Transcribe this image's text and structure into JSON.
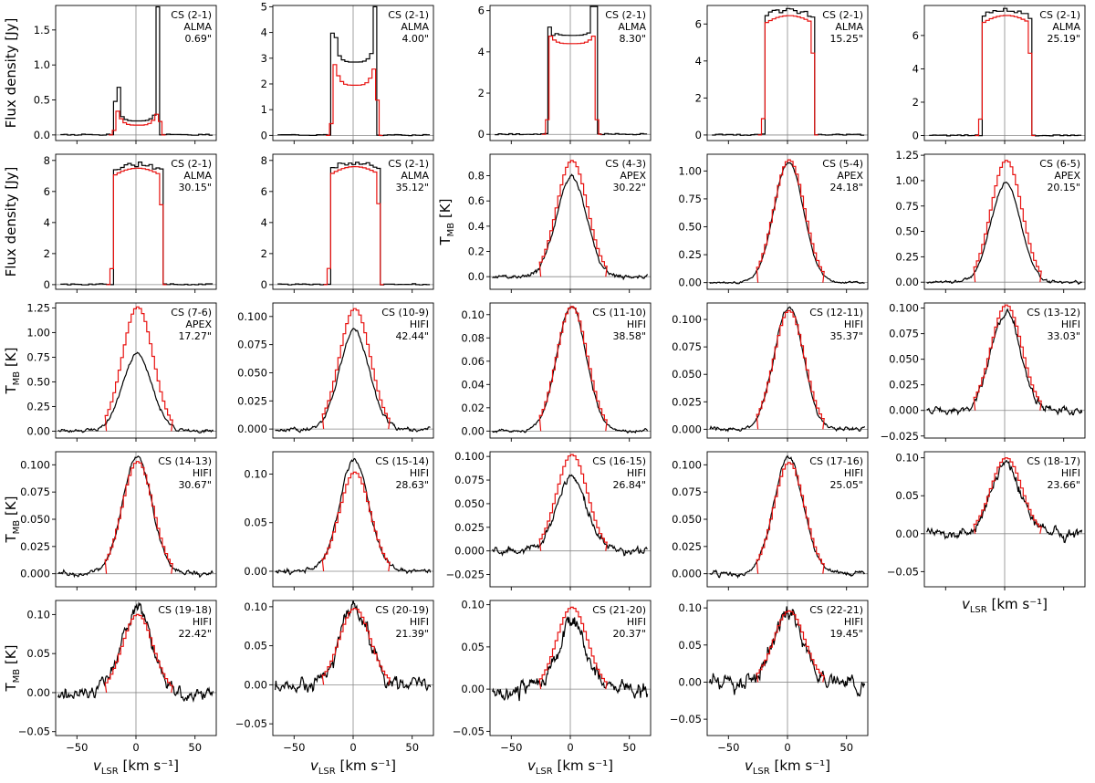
{
  "colors": {
    "observed": "#000000",
    "model": "#e8110f",
    "reference": "#888888",
    "axes": "#000000"
  },
  "chart_data": {
    "type": "line",
    "shared_x": {
      "label": "v",
      "label_subscript": "LSR",
      "label_unit": " [km s⁻¹]",
      "xlim": [
        -68,
        68
      ],
      "xticks": [
        -50,
        0,
        50
      ]
    },
    "ylabels": {
      "flux": "Flux density [Jy]",
      "tmb": "T",
      "tmb_subscript": "MB",
      "tmb_unit": " [K]"
    },
    "panels": [
      {
        "line": "CS (2-1)",
        "telescope": "ALMA",
        "beam": "0.69\"",
        "shape": "ushape",
        "ylabel": "flux",
        "ylim": [
          -0.08,
          1.85
        ],
        "yticks": [
          0.0,
          0.5,
          1.0,
          1.5
        ],
        "yticklabels": [
          "0.0",
          "0.5",
          "1.0",
          "1.5"
        ],
        "model_peak": 0.45,
        "model_center": 0.14,
        "obs_peak": 1.83,
        "obs_center": 0.2,
        "obs_spike": 0.68,
        "half_width": 19,
        "seed": 1
      },
      {
        "line": "CS (2-1)",
        "telescope": "ALMA",
        "beam": "4.00\"",
        "shape": "ushape",
        "ylabel": "flux",
        "ylim": [
          -0.2,
          5.05
        ],
        "yticks": [
          0,
          1,
          2,
          3,
          4,
          5
        ],
        "yticklabels": [
          "0",
          "1",
          "2",
          "3",
          "4",
          "5"
        ],
        "model_peak": 3.2,
        "model_center": 1.95,
        "obs_peak": 5.0,
        "obs_center": 2.85,
        "obs_spike": 3.8,
        "half_width": 19,
        "seed": 2
      },
      {
        "line": "CS (2-1)",
        "telescope": "ALMA",
        "beam": "8.30\"",
        "shape": "ushape",
        "ylabel": "flux",
        "ylim": [
          -0.3,
          6.25
        ],
        "yticks": [
          0,
          2,
          4,
          6
        ],
        "yticklabels": [
          "0",
          "2",
          "4",
          "6"
        ],
        "model_peak": 4.95,
        "model_center": 4.4,
        "obs_peak": 6.2,
        "obs_center": 4.8,
        "obs_spike": 4.8,
        "half_width": 20,
        "seed": 3
      },
      {
        "line": "CS (2-1)",
        "telescope": "ALMA",
        "beam": "15.25\"",
        "shape": "flat",
        "ylabel": "flux",
        "ylim": [
          -0.3,
          7.0
        ],
        "yticks": [
          0,
          2,
          4,
          6
        ],
        "yticklabels": [
          "0",
          "2",
          "4",
          "6"
        ],
        "model_peak": 6.45,
        "obs_peak": 6.75,
        "half_width": 21,
        "seed": 4
      },
      {
        "line": "CS (2-1)",
        "telescope": "ALMA",
        "beam": "25.19\"",
        "shape": "flat",
        "ylabel": "flux",
        "ylim": [
          -0.3,
          7.8
        ],
        "yticks": [
          0,
          2,
          4,
          6
        ],
        "yticklabels": [
          "0",
          "2",
          "4",
          "6"
        ],
        "model_peak": 7.2,
        "obs_peak": 7.5,
        "half_width": 21,
        "seed": 5
      },
      {
        "line": "CS (2-1)",
        "telescope": "ALMA",
        "beam": "30.15\"",
        "shape": "flat",
        "ylabel": "flux",
        "ylim": [
          -0.3,
          8.4
        ],
        "yticks": [
          0,
          2,
          4,
          6,
          8
        ],
        "yticklabels": [
          "0",
          "2",
          "4",
          "6",
          "8"
        ],
        "model_peak": 7.5,
        "obs_peak": 7.75,
        "half_width": 21,
        "seed": 6
      },
      {
        "line": "CS (2-1)",
        "telescope": "ALMA",
        "beam": "35.12\"",
        "shape": "flat",
        "ylabel": "flux",
        "ylim": [
          -0.3,
          8.4
        ],
        "yticks": [
          0,
          2,
          4,
          6,
          8
        ],
        "yticklabels": [
          "0",
          "2",
          "4",
          "6",
          "8"
        ],
        "model_peak": 7.6,
        "obs_peak": 7.85,
        "half_width": 21,
        "seed": 7
      },
      {
        "line": "CS (4-3)",
        "telescope": "APEX",
        "beam": "30.22\"",
        "shape": "gauss",
        "ylabel": "tmb",
        "ylim": [
          -0.1,
          0.97
        ],
        "yticks": [
          0.0,
          0.2,
          0.4,
          0.6,
          0.8
        ],
        "yticklabels": [
          "0.0",
          "0.2",
          "0.4",
          "0.6",
          "0.8"
        ],
        "model_peak": 0.92,
        "obs_peak": 0.8,
        "noise": 0.04,
        "seed": 8
      },
      {
        "line": "CS (5-4)",
        "telescope": "APEX",
        "beam": "24.18\"",
        "shape": "gauss",
        "ylabel": "tmb",
        "ylim": [
          -0.06,
          1.15
        ],
        "yticks": [
          0.0,
          0.25,
          0.5,
          0.75,
          1.0
        ],
        "yticklabels": [
          "0.00",
          "0.25",
          "0.50",
          "0.75",
          "1.00"
        ],
        "model_peak": 1.1,
        "obs_peak": 1.08,
        "noise": 0.02,
        "seed": 9
      },
      {
        "line": "CS (6-5)",
        "telescope": "APEX",
        "beam": "20.15\"",
        "shape": "gauss",
        "ylabel": "tmb",
        "ylim": [
          -0.07,
          1.26
        ],
        "yticks": [
          0.0,
          0.25,
          0.5,
          0.75,
          1.0,
          1.25
        ],
        "yticklabels": [
          "0.00",
          "0.25",
          "0.50",
          "0.75",
          "1.00",
          "1.25"
        ],
        "model_peak": 1.2,
        "obs_peak": 0.97,
        "noise": 0.03,
        "seed": 10
      },
      {
        "line": "CS (7-6)",
        "telescope": "APEX",
        "beam": "17.27\"",
        "shape": "gauss",
        "ylabel": "tmb",
        "ylim": [
          -0.07,
          1.3
        ],
        "yticks": [
          0.0,
          0.25,
          0.5,
          0.75,
          1.0,
          1.25
        ],
        "yticklabels": [
          "0.00",
          "0.25",
          "0.50",
          "0.75",
          "1.00",
          "1.25"
        ],
        "model_peak": 1.26,
        "obs_peak": 0.78,
        "noise": 0.04,
        "seed": 11
      },
      {
        "line": "CS (10-9)",
        "telescope": "HIFI",
        "beam": "42.44\"",
        "shape": "gauss",
        "ylabel": "tmb",
        "ylim": [
          -0.008,
          0.112
        ],
        "yticks": [
          0.0,
          0.025,
          0.05,
          0.075,
          0.1
        ],
        "yticklabels": [
          "0.000",
          "0.025",
          "0.050",
          "0.075",
          "0.100"
        ],
        "model_peak": 0.107,
        "obs_peak": 0.088,
        "noise": 0.004,
        "seed": 12
      },
      {
        "line": "CS (11-10)",
        "telescope": "HIFI",
        "beam": "38.58\"",
        "shape": "gauss",
        "ylabel": "tmb",
        "ylim": [
          -0.006,
          0.11
        ],
        "yticks": [
          0.0,
          0.02,
          0.04,
          0.06,
          0.08,
          0.1
        ],
        "yticklabels": [
          "0.00",
          "0.02",
          "0.04",
          "0.06",
          "0.08",
          "0.10"
        ],
        "model_peak": 0.107,
        "obs_peak": 0.107,
        "noise": 0.003,
        "seed": 13
      },
      {
        "line": "CS (12-11)",
        "telescope": "HIFI",
        "beam": "35.37\"",
        "shape": "gauss",
        "ylabel": "tmb",
        "ylim": [
          -0.008,
          0.115
        ],
        "yticks": [
          0.0,
          0.025,
          0.05,
          0.075,
          0.1
        ],
        "yticklabels": [
          "0.000",
          "0.025",
          "0.050",
          "0.075",
          "0.100"
        ],
        "model_peak": 0.108,
        "obs_peak": 0.111,
        "noise": 0.004,
        "seed": 14
      },
      {
        "line": "CS (13-12)",
        "telescope": "HIFI",
        "beam": "33.03\"",
        "shape": "gauss",
        "ylabel": "tmb",
        "ylim": [
          -0.027,
          0.105
        ],
        "yticks": [
          -0.025,
          0.0,
          0.025,
          0.05,
          0.075,
          0.1
        ],
        "yticklabels": [
          "−0.025",
          "0.000",
          "0.025",
          "0.050",
          "0.075",
          "0.100"
        ],
        "model_peak": 0.103,
        "obs_peak": 0.095,
        "noise": 0.008,
        "seed": 15
      },
      {
        "line": "CS (14-13)",
        "telescope": "HIFI",
        "beam": "30.67\"",
        "shape": "gauss",
        "ylabel": "tmb",
        "ylim": [
          -0.012,
          0.112
        ],
        "yticks": [
          0.0,
          0.025,
          0.05,
          0.075,
          0.1
        ],
        "yticklabels": [
          "0.000",
          "0.025",
          "0.050",
          "0.075",
          "0.100"
        ],
        "model_peak": 0.103,
        "obs_peak": 0.107,
        "noise": 0.005,
        "seed": 16
      },
      {
        "line": "CS (15-14)",
        "telescope": "HIFI",
        "beam": "28.63\"",
        "shape": "gauss",
        "ylabel": "tmb",
        "ylim": [
          -0.016,
          0.123
        ],
        "yticks": [
          0.0,
          0.05,
          0.1
        ],
        "yticklabels": [
          "0.00",
          "0.05",
          "0.10"
        ],
        "model_peak": 0.102,
        "obs_peak": 0.115,
        "noise": 0.006,
        "seed": 17
      },
      {
        "line": "CS (16-15)",
        "telescope": "HIFI",
        "beam": "26.84\"",
        "shape": "gauss",
        "ylabel": "tmb",
        "ylim": [
          -0.038,
          0.105
        ],
        "yticks": [
          -0.025,
          0.0,
          0.025,
          0.05,
          0.075,
          0.1
        ],
        "yticklabels": [
          "−0.025",
          "0.000",
          "0.025",
          "0.050",
          "0.075",
          "0.100"
        ],
        "model_peak": 0.102,
        "obs_peak": 0.078,
        "noise": 0.009,
        "seed": 18
      },
      {
        "line": "CS (17-16)",
        "telescope": "HIFI",
        "beam": "25.05\"",
        "shape": "gauss",
        "ylabel": "tmb",
        "ylim": [
          -0.012,
          0.112
        ],
        "yticks": [
          0.0,
          0.025,
          0.05,
          0.075,
          0.1
        ],
        "yticklabels": [
          "0.000",
          "0.025",
          "0.050",
          "0.075",
          "0.100"
        ],
        "model_peak": 0.102,
        "obs_peak": 0.107,
        "noise": 0.005,
        "seed": 19
      },
      {
        "line": "CS (18-17)",
        "telescope": "HIFI",
        "beam": "23.66\"",
        "shape": "gauss",
        "ylabel": "tmb",
        "ylim": [
          -0.07,
          0.108
        ],
        "yticks": [
          -0.05,
          0.0,
          0.05,
          0.1
        ],
        "yticklabels": [
          "−0.05",
          "0.00",
          "0.05",
          "0.10"
        ],
        "model_peak": 0.1,
        "obs_peak": 0.09,
        "noise": 0.016,
        "seed": 20
      },
      {
        "line": "CS (19-18)",
        "telescope": "HIFI",
        "beam": "22.42\"",
        "shape": "gauss",
        "ylabel": "tmb",
        "ylim": [
          -0.055,
          0.118
        ],
        "yticks": [
          -0.05,
          0.0,
          0.05,
          0.1
        ],
        "yticklabels": [
          "−0.05",
          "0.00",
          "0.05",
          "0.10"
        ],
        "model_peak": 0.1,
        "obs_peak": 0.11,
        "noise": 0.02,
        "seed": 21
      },
      {
        "line": "CS (20-19)",
        "telescope": "HIFI",
        "beam": "21.39\"",
        "shape": "gauss",
        "ylabel": "tmb",
        "ylim": [
          -0.065,
          0.108
        ],
        "yticks": [
          -0.05,
          0.0,
          0.05,
          0.1
        ],
        "yticklabels": [
          "−0.05",
          "0.00",
          "0.05",
          "0.10"
        ],
        "model_peak": 0.098,
        "obs_peak": 0.1,
        "noise": 0.022,
        "seed": 22
      },
      {
        "line": "CS (21-20)",
        "telescope": "HIFI",
        "beam": "20.37\"",
        "shape": "gauss",
        "ylabel": "tmb",
        "ylim": [
          -0.055,
          0.105
        ],
        "yticks": [
          -0.05,
          0.0,
          0.05,
          0.1
        ],
        "yticklabels": [
          "−0.05",
          "0.00",
          "0.05",
          "0.10"
        ],
        "model_peak": 0.097,
        "obs_peak": 0.078,
        "noise": 0.022,
        "seed": 23
      },
      {
        "line": "CS (22-21)",
        "telescope": "HIFI",
        "beam": "19.45\"",
        "shape": "gauss",
        "ylabel": "tmb",
        "ylim": [
          -0.072,
          0.11
        ],
        "yticks": [
          -0.05,
          0.0,
          0.05,
          0.1
        ],
        "yticklabels": [
          "−0.05",
          "0.00",
          "0.05",
          "0.10"
        ],
        "model_peak": 0.096,
        "obs_peak": 0.095,
        "noise": 0.025,
        "seed": 24
      }
    ]
  }
}
